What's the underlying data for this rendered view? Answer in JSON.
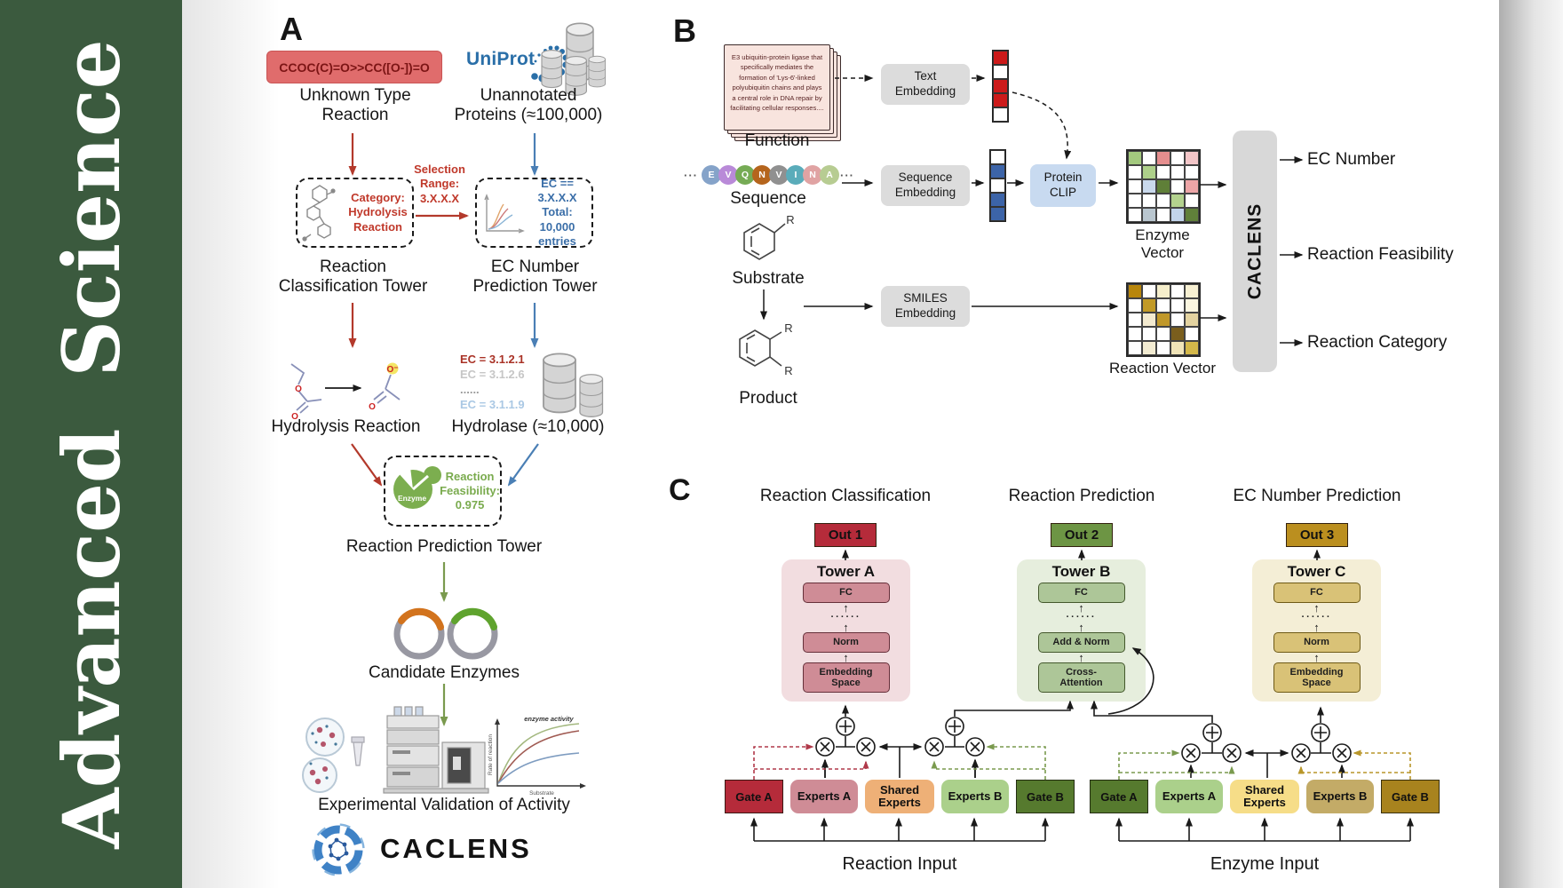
{
  "journal": {
    "word_bottom": "Advanced",
    "word_top": "Science"
  },
  "panel_a": {
    "label": "A",
    "smiles": "CCOC(C)=O>>CC([O-])=O",
    "unknown_type_l1": "Unknown Type",
    "unknown_type_l2": "Reaction",
    "uniprot": "UniProt",
    "unannotated_l1": "Unannotated",
    "unannotated_l2": "Proteins (≈100,000)",
    "selection_l1": "Selection",
    "selection_l2": "Range:",
    "selection_l3": "3.X.X.X",
    "category_l1": "Category:",
    "category_l2": "Hydrolysis",
    "category_l3": "Reaction",
    "ec_box_l1": "EC == 3.X.X.X",
    "ec_box_l2": "Total: 10,000",
    "ec_box_l3": "entries",
    "classification_tower_l1": "Reaction",
    "classification_tower_l2": "Classification Tower",
    "ec_tower_l1": "EC Number",
    "ec_tower_l2": "Prediction Tower",
    "ec_list": [
      {
        "text": "EC = 3.1.2.1",
        "color": "#a93226"
      },
      {
        "text": "EC = 3.1.2.6",
        "color": "#c6c6c6"
      },
      {
        "text": "......",
        "color": "#9a9a9a"
      },
      {
        "text": "EC = 3.1.1.9",
        "color": "#aac8e4"
      }
    ],
    "hydrolysis_label": "Hydrolysis Reaction",
    "hydrolase_label": "Hydrolase (≈10,000)",
    "enzyme_badge": "Enzyme",
    "feasibility_l1": "Reaction",
    "feasibility_l2": "Feasibility:",
    "feasibility_l3": "0.975",
    "prediction_tower_label": "Reaction Prediction Tower",
    "candidates_label": "Candidate Enzymes",
    "graph": {
      "annotation": "enzyme activity",
      "ylabel": "Rate of reaction",
      "xlabel": "Substrate"
    },
    "validation_label": "Experimental Validation of Activity",
    "brand": "CACLENS",
    "atom_o": "O",
    "atom_o_neg": "O⁻"
  },
  "panel_b": {
    "label": "B",
    "function_card": "E3 ubiquitin-protein ligase that specifically mediates the formation of 'Lys-6'-linked polyubiquitin chains and plays a central role in DNA repair by facilitating cellular responses....",
    "function_label": "Function",
    "ellipsis": "···",
    "residues": [
      {
        "letter": "E",
        "color": "#85a3c9"
      },
      {
        "letter": "V",
        "color": "#b98ad8"
      },
      {
        "letter": "Q",
        "color": "#76ab55"
      },
      {
        "letter": "N",
        "color": "#b5651d"
      },
      {
        "letter": "V",
        "color": "#909090"
      },
      {
        "letter": "I",
        "color": "#5aacba"
      },
      {
        "letter": "N",
        "color": "#e0a3a3"
      },
      {
        "letter": "A",
        "color": "#b7cc92"
      }
    ],
    "sequence_label": "Sequence",
    "substrate_label": "Substrate",
    "product_label": "Product",
    "r_group": "R",
    "text_embedding_l1": "Text",
    "text_embedding_l2": "Embedding",
    "sequence_embedding_l1": "Sequence",
    "sequence_embedding_l2": "Embedding",
    "smiles_embedding_l1": "SMILES",
    "smiles_embedding_l2": "Embedding",
    "protein_clip_l1": "Protein",
    "protein_clip_l2": "CLIP",
    "text_vector": [
      "#cc1a1a",
      "#ffffff",
      "#cc1a1a",
      "#cc1a1a",
      "#ffffff"
    ],
    "sequence_vector": [
      "#ffffff",
      "#3c64a8",
      "#ffffff",
      "#3c64a8",
      "#3c64a8"
    ],
    "enzyme_grid": [
      "#a3c97e",
      "#ffffff",
      "#e58e8e",
      "#ffffff",
      "#f3c6c8",
      "#ffffff",
      "#aed08a",
      "#ffffff",
      "#ffffff",
      "#ffffff",
      "#ffffff",
      "#c9d9ec",
      "#5f7f38",
      "#ffffff",
      "#eda5a7",
      "#ffffff",
      "#ffffff",
      "#ffffff",
      "#b3d28e",
      "#ffffff",
      "#ffffff",
      "#b9c6cf",
      "#ffffff",
      "#c2d4ea",
      "#60803a"
    ],
    "reaction_grid": [
      "#b8860b",
      "#ffffff",
      "#f5eecb",
      "#ffffff",
      "#f7f0d2",
      "#ffffff",
      "#c29a27",
      "#ffffff",
      "#ffffff",
      "#fbf6e0",
      "#ffffff",
      "#f3ead0",
      "#c0982a",
      "#ffffff",
      "#e3d3a0",
      "#ffffff",
      "#ffffff",
      "#ffffff",
      "#7a5e1d",
      "#ffffff",
      "#ffffff",
      "#f3ecd2",
      "#ffffff",
      "#f0e4b8",
      "#d4b84a"
    ],
    "enzyme_vector_label": "Enzyme Vector",
    "reaction_vector_label": "Reaction Vector",
    "caclens_bar": "CACLENS",
    "outputs": [
      "EC Number",
      "Reaction Feasibility",
      "Reaction Category"
    ]
  },
  "panel_c": {
    "label": "C",
    "headers": [
      "Reaction Classification",
      "Reaction Prediction",
      "EC Number Prediction"
    ],
    "outs": [
      "Out 1",
      "Out 2",
      "Out 3"
    ],
    "towers": [
      {
        "title": "Tower A",
        "l1": "FC",
        "dots": "······",
        "l2": "Norm",
        "l3_1": "Embedding",
        "l3_2": "Space"
      },
      {
        "title": "Tower B",
        "l1": "FC",
        "dots": "······",
        "l2": "Add & Norm",
        "l3_1": "Cross-",
        "l3_2": "Attention"
      },
      {
        "title": "Tower C",
        "l1": "FC",
        "dots": "······",
        "l2": "Norm",
        "l3_1": "Embedding",
        "l3_2": "Space"
      }
    ],
    "gates_left": [
      "Gate A",
      "Experts A",
      "Shared Experts",
      "Experts B",
      "Gate B"
    ],
    "gates_right": [
      "Gate A",
      "Experts A",
      "Shared Experts",
      "Experts B",
      "Gate B"
    ],
    "reaction_input_label": "Reaction Input",
    "enzyme_input_label": "Enzyme Input"
  },
  "colors": {
    "sidebar_green": "#3b5a3e",
    "arrow_red": "#b3392b",
    "arrow_blue": "#4a7fb5",
    "arrow_green": "#7a9a4e",
    "out1_red": "#b52b3a",
    "out2_green": "#6d9544",
    "out3_gold": "#bb8f1f",
    "uniprot_blue": "#2a6fa8"
  }
}
